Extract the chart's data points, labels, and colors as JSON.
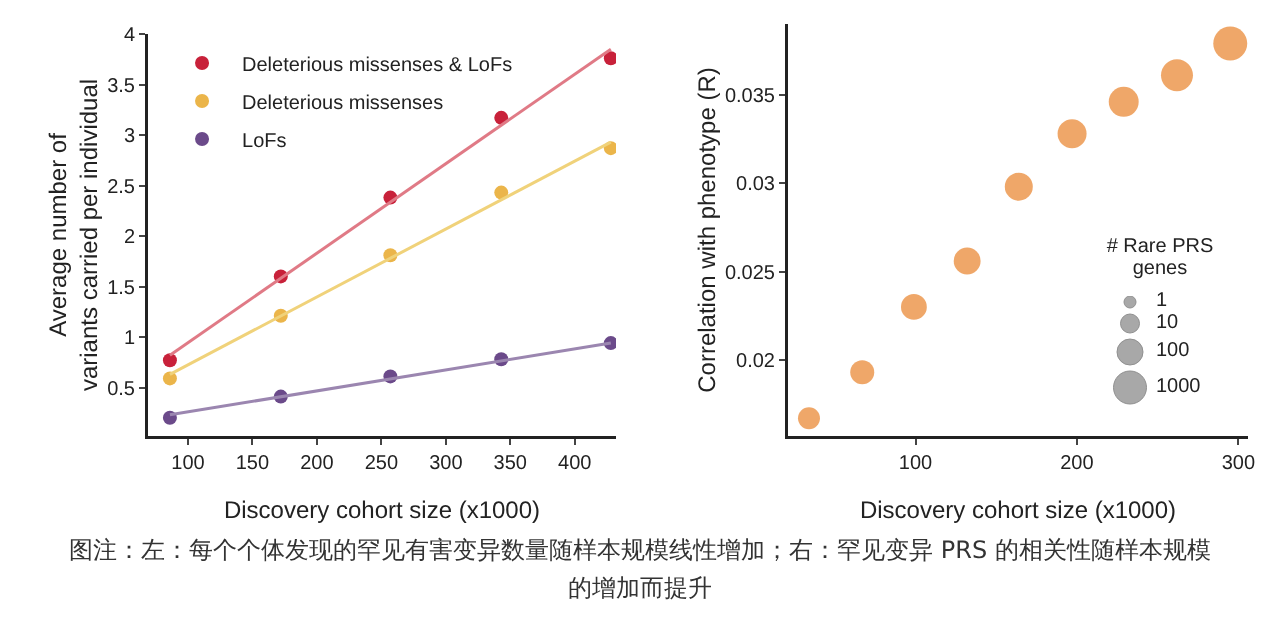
{
  "chart_data": [
    {
      "type": "scatter",
      "xlabel": "Discovery cohort size (x1000)",
      "ylabel": "Average number of\nvariants carried per individual",
      "xlim": [
        69,
        432
      ],
      "xticks": [
        100,
        150,
        200,
        250,
        300,
        350,
        400
      ],
      "ylim": [
        0.02,
        4.0
      ],
      "yticks": [
        0.5,
        1.0,
        1.5,
        2.0,
        2.5,
        3.0,
        3.5,
        4.0
      ],
      "grid": false,
      "legend": "top left",
      "series": [
        {
          "name": "Deleterious missenses & LoFs",
          "color": "#c8213a",
          "marker": "circle",
          "x": [
            86,
            172,
            257,
            343,
            428
          ],
          "values": [
            0.77,
            1.6,
            2.38,
            3.17,
            3.76
          ]
        },
        {
          "name": "Deleterious missenses",
          "color": "#ebb54a",
          "marker": "circle",
          "x": [
            86,
            172,
            257,
            343,
            428
          ],
          "values": [
            0.59,
            1.21,
            1.81,
            2.43,
            2.87
          ]
        },
        {
          "name": "LoFs",
          "color": "#6b4a8a",
          "marker": "circle",
          "x": [
            86,
            172,
            257,
            343,
            428
          ],
          "values": [
            0.2,
            0.41,
            0.61,
            0.78,
            0.94
          ]
        },
        {
          "type": "line",
          "color": "#e07a86",
          "x": [
            86,
            428
          ],
          "values": [
            0.82,
            3.85
          ]
        },
        {
          "type": "line",
          "color": "#f0d27a",
          "x": [
            86,
            428
          ],
          "values": [
            0.63,
            2.93
          ]
        },
        {
          "type": "line",
          "color": "#9b86b0",
          "x": [
            86,
            428
          ],
          "values": [
            0.23,
            0.94
          ]
        }
      ],
      "annotations": [
        "图注：左：每个个体发现的罕见有害变异数量随样本规模线性增加；右：罕见变异 PRS 的相关性随样本规模的增加而提升"
      ]
    },
    {
      "type": "bubble",
      "xlabel": "Discovery cohort size (x1000)",
      "ylabel": "Correlation with phenotype (R)",
      "legend_title": "# Rare PRS genes",
      "xlim": [
        21,
        306
      ],
      "xticks": [
        100,
        200,
        300
      ],
      "ylim": [
        0.0157,
        0.039
      ],
      "yticks": [
        0.02,
        0.025,
        0.03,
        0.035
      ],
      "grid": false,
      "x": [
        34,
        67,
        99,
        132,
        164,
        197,
        229,
        262,
        295
      ],
      "values": [
        0.0167,
        0.0193,
        0.023,
        0.0256,
        0.0298,
        0.0328,
        0.0346,
        0.0361,
        0.0379
      ],
      "sizes": [
        0.42,
        0.5,
        0.58,
        0.63,
        0.68,
        0.73,
        0.78,
        0.89,
        1
      ],
      "annotations": [
        "1",
        "10",
        "100",
        "1000"
      ],
      "color": "#e8822a"
    }
  ]
}
